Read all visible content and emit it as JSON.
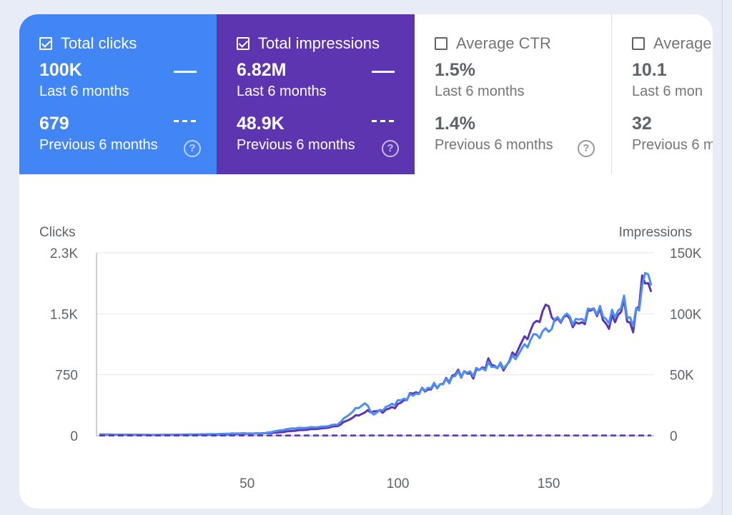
{
  "metrics": [
    {
      "label": "Total clicks",
      "checked": true,
      "value": "100K",
      "period": "Last 6 months",
      "prev_value": "679",
      "prev_period": "Previous 6 months",
      "color": "#4285f4"
    },
    {
      "label": "Total impressions",
      "checked": true,
      "value": "6.82M",
      "period": "Last 6 months",
      "prev_value": "48.9K",
      "prev_period": "Previous 6 months",
      "color": "#5e35b1"
    },
    {
      "label": "Average CTR",
      "checked": false,
      "value": "1.5%",
      "period": "Last 6 months",
      "prev_value": "1.4%",
      "prev_period": "Previous 6 months"
    },
    {
      "label": "Average",
      "checked": false,
      "value": "10.1",
      "period": "Last 6 mon",
      "prev_value": "32",
      "prev_period": "Previous 6 m"
    }
  ],
  "help_icon_glyph": "?",
  "chart_data": {
    "type": "line",
    "y_left_label": "Clicks",
    "y_right_label": "Impressions",
    "y_left_ticks": [
      "2.3K",
      "1.5K",
      "750",
      "0"
    ],
    "y_right_ticks": [
      "150K",
      "100K",
      "50K",
      "0"
    ],
    "x_ticks": [
      "50",
      "100",
      "150"
    ],
    "y_left_lim": [
      0,
      2250
    ],
    "y_right_lim": [
      0,
      150000
    ],
    "x_lim": [
      1,
      184
    ],
    "grid": true,
    "series": [
      {
        "name": "Total impressions",
        "axis": "right",
        "color": "#5e35b1",
        "style": "solid",
        "keypoints": [
          [
            1,
            1000
          ],
          [
            20,
            600
          ],
          [
            40,
            1000
          ],
          [
            55,
            2000
          ],
          [
            60,
            2500
          ],
          [
            65,
            4000
          ],
          [
            70,
            5000
          ],
          [
            75,
            6000
          ],
          [
            80,
            8000
          ],
          [
            85,
            15000
          ],
          [
            90,
            20000
          ],
          [
            95,
            20000
          ],
          [
            100,
            25000
          ],
          [
            105,
            35000
          ],
          [
            110,
            38000
          ],
          [
            115,
            43000
          ],
          [
            120,
            52000
          ],
          [
            125,
            50000
          ],
          [
            130,
            60000
          ],
          [
            135,
            55000
          ],
          [
            140,
            72000
          ],
          [
            145,
            90000
          ],
          [
            150,
            108000
          ],
          [
            152,
            92000
          ],
          [
            155,
            98000
          ],
          [
            160,
            90000
          ],
          [
            165,
            105000
          ],
          [
            170,
            90000
          ],
          [
            175,
            106000
          ],
          [
            178,
            85000
          ],
          [
            181,
            128000
          ],
          [
            184,
            118000
          ]
        ]
      },
      {
        "name": "Total clicks",
        "axis": "left",
        "color": "#4c8df6",
        "style": "solid",
        "keypoints": [
          [
            1,
            15
          ],
          [
            20,
            10
          ],
          [
            40,
            20
          ],
          [
            48,
            30
          ],
          [
            55,
            25
          ],
          [
            60,
            60
          ],
          [
            65,
            90
          ],
          [
            70,
            100
          ],
          [
            75,
            110
          ],
          [
            80,
            140
          ],
          [
            85,
            300
          ],
          [
            89,
            400
          ],
          [
            92,
            260
          ],
          [
            95,
            330
          ],
          [
            100,
            420
          ],
          [
            105,
            500
          ],
          [
            110,
            590
          ],
          [
            115,
            640
          ],
          [
            120,
            760
          ],
          [
            125,
            780
          ],
          [
            130,
            860
          ],
          [
            135,
            850
          ],
          [
            140,
            1010
          ],
          [
            145,
            1220
          ],
          [
            150,
            1300
          ],
          [
            152,
            1400
          ],
          [
            155,
            1480
          ],
          [
            160,
            1400
          ],
          [
            165,
            1580
          ],
          [
            170,
            1420
          ],
          [
            175,
            1630
          ],
          [
            178,
            1350
          ],
          [
            181,
            1800
          ],
          [
            182,
            2000
          ],
          [
            184,
            1850
          ]
        ]
      },
      {
        "name": "Clicks previous 6 months",
        "axis": "left",
        "color": "#4c8df6",
        "style": "dashed",
        "keypoints": [
          [
            1,
            3
          ],
          [
            184,
            3
          ]
        ]
      },
      {
        "name": "Impressions previous 6 months",
        "axis": "right",
        "color": "#5e35b1",
        "style": "dashed",
        "keypoints": [
          [
            1,
            250
          ],
          [
            184,
            250
          ]
        ]
      }
    ]
  }
}
